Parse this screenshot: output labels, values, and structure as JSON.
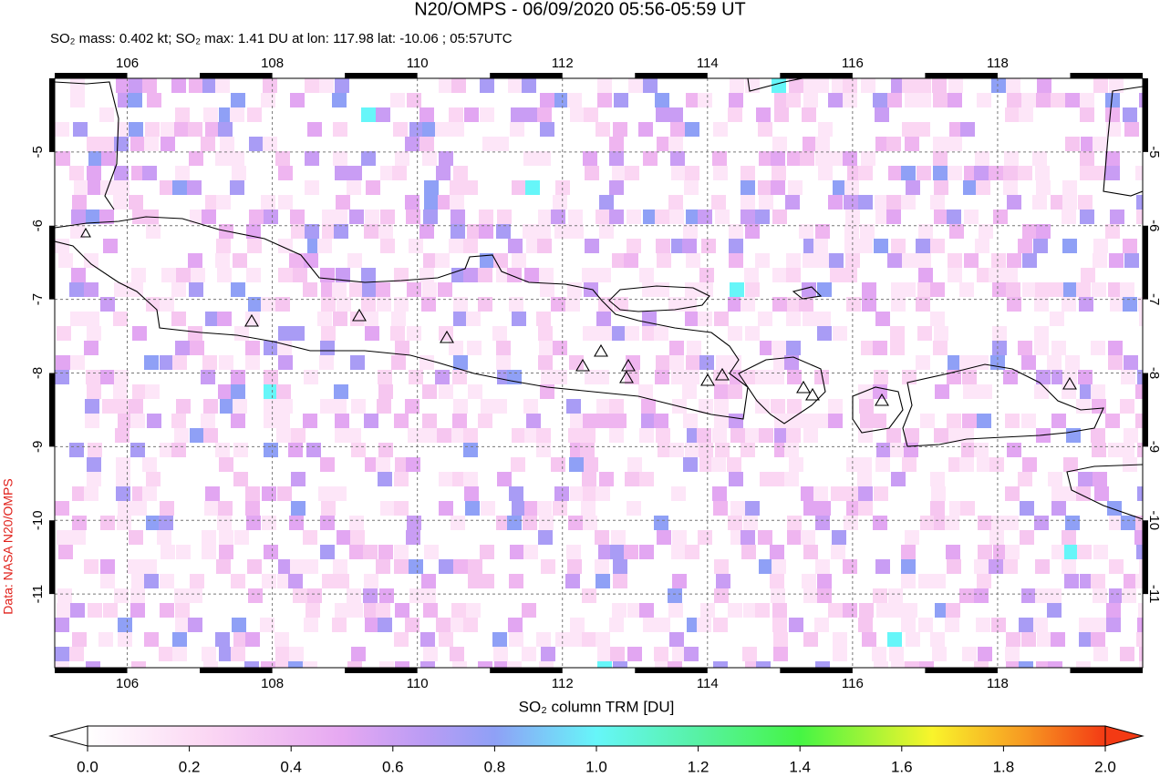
{
  "title": "N20/OMPS - 06/09/2020 05:56-05:59 UT",
  "subtitle": "SO₂ mass: 0.402 kt; SO₂ max: 1.41 DU at lon: 117.98 lat: -10.06 ; 05:57UTC",
  "credit": "Data: NASA N20/OMPS",
  "map": {
    "xlim": [
      105,
      120
    ],
    "ylim": [
      -12,
      -4
    ],
    "xticks": [
      106,
      108,
      110,
      112,
      114,
      116,
      118
    ],
    "yticks": [
      -5,
      -6,
      -7,
      -8,
      -9,
      -10,
      -11
    ],
    "grid": true
  },
  "colorbar": {
    "label": "SO₂ column TRM [DU]",
    "lim": [
      0,
      2
    ],
    "ticks": [
      {
        "value": 0,
        "label": "0.0"
      },
      {
        "value": 0.2,
        "label": "0.2"
      },
      {
        "value": 0.4,
        "label": "0.4"
      },
      {
        "value": 0.6,
        "label": "0.6"
      },
      {
        "value": 0.8,
        "label": "0.8"
      },
      {
        "value": 1,
        "label": "1.0"
      },
      {
        "value": 1.2,
        "label": "1.2"
      },
      {
        "value": 1.4,
        "label": "1.4"
      },
      {
        "value": 1.6,
        "label": "1.6"
      },
      {
        "value": 1.8,
        "label": "1.8"
      },
      {
        "value": 2,
        "label": "2.0"
      }
    ]
  }
}
